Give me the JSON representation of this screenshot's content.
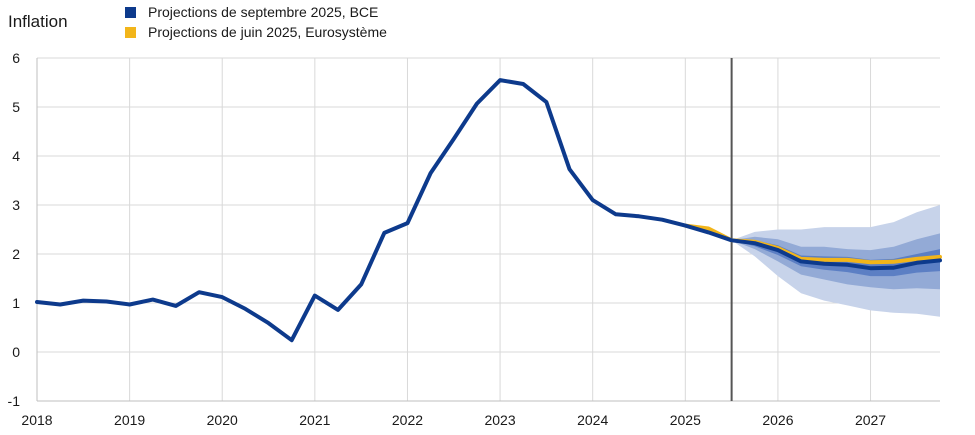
{
  "chart_data": {
    "type": "line",
    "title": "Inflation",
    "xlabel": "",
    "ylabel": "",
    "xlim": [
      2018.0,
      2027.75
    ],
    "ylim": [
      -1,
      6
    ],
    "x_ticks": [
      "2018",
      "2019",
      "2020",
      "2021",
      "2022",
      "2023",
      "2024",
      "2025",
      "2026",
      "2027"
    ],
    "y_ticks": [
      "6",
      "5",
      "4",
      "3",
      "2",
      "1",
      "0",
      "-1"
    ],
    "grid": true,
    "projection_start": 2025.5,
    "colors": {
      "sept": "#0d3a8c",
      "june": "#f2b51a",
      "band_outer": "#c7d3ea",
      "band_mid": "#93aad6",
      "band_inner": "#5c7fc4",
      "vline": "#555555",
      "grid": "#d9d9d9"
    },
    "series": [
      {
        "name": "Projections de septembre 2025, BCE",
        "x": [
          2018.0,
          2018.25,
          2018.5,
          2018.75,
          2019.0,
          2019.25,
          2019.5,
          2019.75,
          2020.0,
          2020.25,
          2020.5,
          2020.75,
          2021.0,
          2021.25,
          2021.5,
          2021.75,
          2022.0,
          2022.25,
          2022.5,
          2022.75,
          2023.0,
          2023.25,
          2023.5,
          2023.75,
          2024.0,
          2024.25,
          2024.5,
          2024.75,
          2025.0,
          2025.25,
          2025.5,
          2025.75,
          2026.0,
          2026.25,
          2026.5,
          2026.75,
          2027.0,
          2027.25,
          2027.5,
          2027.75
        ],
        "values": [
          1.02,
          0.97,
          1.05,
          1.03,
          0.97,
          1.07,
          0.94,
          1.22,
          1.12,
          0.88,
          0.59,
          0.24,
          1.15,
          0.86,
          1.38,
          2.43,
          2.63,
          3.65,
          4.35,
          5.07,
          5.55,
          5.47,
          5.1,
          3.73,
          3.1,
          2.81,
          2.77,
          2.7,
          2.58,
          2.44,
          2.28,
          2.22,
          2.08,
          1.85,
          1.8,
          1.78,
          1.71,
          1.72,
          1.82,
          1.87
        ]
      },
      {
        "name": "Projections de juin 2025, Eurosystème",
        "x": [
          2025.0,
          2025.25,
          2025.5,
          2025.75,
          2026.0,
          2026.25,
          2026.5,
          2026.75,
          2027.0,
          2027.25,
          2027.5,
          2027.75
        ],
        "values": [
          2.58,
          2.52,
          2.28,
          2.25,
          2.12,
          1.9,
          1.88,
          1.88,
          1.83,
          1.84,
          1.9,
          1.94
        ]
      }
    ],
    "bands": {
      "x": [
        2025.5,
        2025.75,
        2026.0,
        2026.25,
        2026.5,
        2026.75,
        2027.0,
        2027.25,
        2027.5,
        2027.75
      ],
      "outer_upper": [
        2.28,
        2.45,
        2.5,
        2.5,
        2.55,
        2.55,
        2.55,
        2.65,
        2.85,
        3.0
      ],
      "outer_lower": [
        2.28,
        1.95,
        1.55,
        1.2,
        1.05,
        0.95,
        0.85,
        0.8,
        0.78,
        0.72
      ],
      "mid_upper": [
        2.28,
        2.35,
        2.3,
        2.15,
        2.15,
        2.1,
        2.08,
        2.15,
        2.3,
        2.42
      ],
      "mid_lower": [
        2.28,
        2.1,
        1.85,
        1.58,
        1.48,
        1.38,
        1.32,
        1.28,
        1.3,
        1.28
      ],
      "inner_upper": [
        2.28,
        2.28,
        2.18,
        1.97,
        1.95,
        1.94,
        1.88,
        1.9,
        2.0,
        2.1
      ],
      "inner_lower": [
        2.28,
        2.16,
        1.98,
        1.75,
        1.68,
        1.63,
        1.55,
        1.55,
        1.62,
        1.65
      ]
    }
  }
}
